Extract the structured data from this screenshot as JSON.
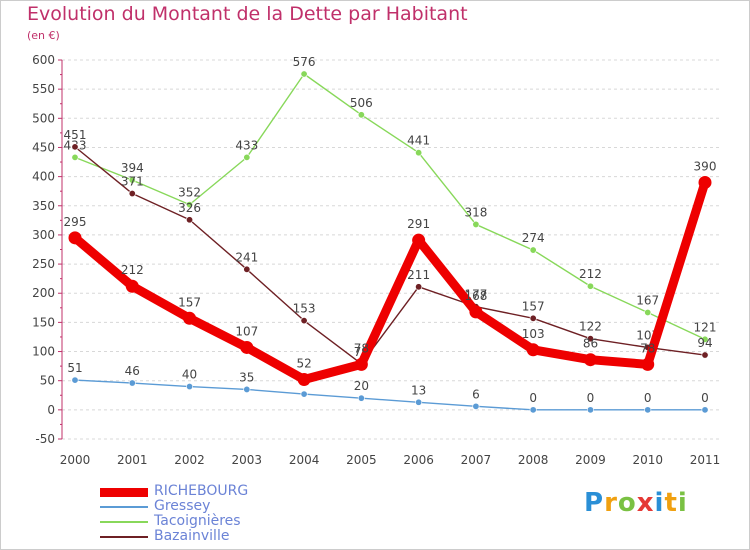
{
  "chart_data": {
    "type": "line",
    "title": "Evolution du Montant de la Dette par Habitant",
    "unit_label": "(en €)",
    "ylim": [
      -50,
      600
    ],
    "yticks": [
      -50,
      0,
      50,
      100,
      150,
      200,
      250,
      300,
      350,
      400,
      450,
      500,
      550,
      600
    ],
    "x": [
      "2000",
      "2001",
      "2002",
      "2003",
      "2004",
      "2005",
      "2006",
      "2007",
      "2008",
      "2009",
      "2010",
      "2011"
    ],
    "grid": "horizontal dashed",
    "legend_position": "bottom-left",
    "series": [
      {
        "name": "Tacoignières",
        "color": "#88d85a",
        "values": [
          433,
          394,
          352,
          433,
          576,
          506,
          441,
          318,
          274,
          212,
          167,
          121
        ]
      },
      {
        "name": "Bazainville",
        "color": "#6e2024",
        "values": [
          451,
          371,
          326,
          241,
          153,
          79,
          211,
          177,
          157,
          122,
          107,
          94
        ]
      },
      {
        "name": "Gressey",
        "color": "#5b9bd5",
        "values": [
          51,
          46,
          40,
          35,
          27,
          20,
          13,
          6,
          0,
          0,
          0,
          0
        ],
        "labels": [
          "51",
          "46",
          "40",
          "35",
          "",
          "20",
          "13",
          "6",
          "0",
          "0",
          "0",
          "0"
        ]
      },
      {
        "name": "RICHEBOURG",
        "color": "#ee0000",
        "values": [
          295,
          212,
          157,
          107,
          52,
          78,
          291,
          168,
          103,
          86,
          78,
          390
        ]
      }
    ]
  },
  "legend": {
    "items": [
      {
        "label": "RICHEBOURG",
        "color": "#ee0000"
      },
      {
        "label": "Gressey",
        "color": "#5b9bd5"
      },
      {
        "label": "Tacoignières",
        "color": "#88d85a"
      },
      {
        "label": "Bazainville",
        "color": "#6e2024"
      }
    ]
  },
  "brand": {
    "letters": [
      "P",
      "r",
      "o",
      "x",
      "i",
      "t",
      "i"
    ],
    "colors": [
      "#2a8fd6",
      "#f0a010",
      "#7ac143",
      "#e53935",
      "#2a8fd6",
      "#f0a010",
      "#7ac143"
    ]
  }
}
